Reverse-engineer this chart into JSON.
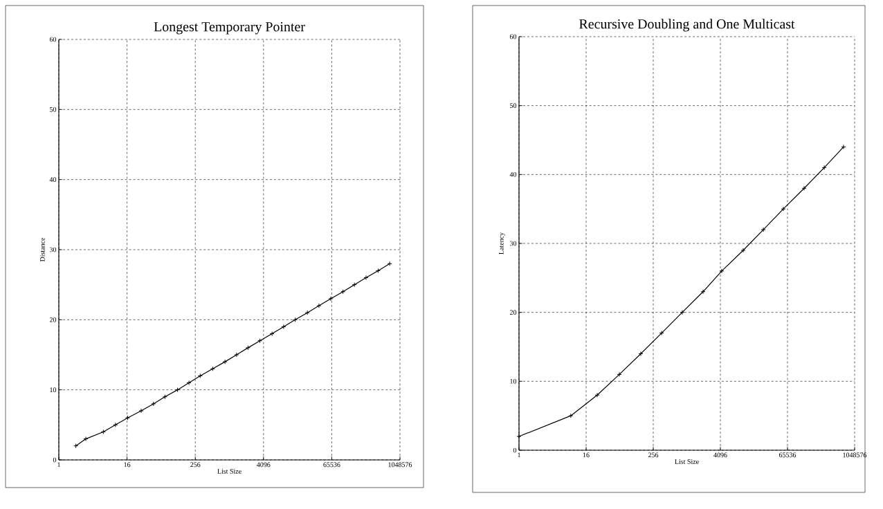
{
  "chart_data": [
    {
      "type": "line",
      "title": "Longest Temporary Pointer",
      "xlabel": "List Size",
      "ylabel": "Distance",
      "color": "#000000",
      "marker": "cross",
      "line_style": "solid",
      "grid": true,
      "log": "x",
      "x": [
        2,
        3,
        6.1,
        10,
        16.4,
        28.4,
        46.8,
        74.5,
        124.5,
        198,
        313,
        519,
        855,
        1370,
        2180,
        3540,
        5790,
        9280,
        14860,
        24320,
        38950,
        62820,
        103500,
        164700,
        264000,
        431600,
        691000
      ],
      "values": [
        2,
        3,
        4,
        5,
        6,
        7,
        8,
        9,
        10,
        11,
        12,
        13,
        14,
        15,
        16,
        17,
        18,
        19,
        20,
        21,
        22,
        23,
        24,
        25,
        26,
        27,
        28
      ],
      "xlim": [
        1,
        1048576
      ],
      "ylim": [
        0,
        60
      ],
      "xticks": [
        1,
        16,
        256,
        4096,
        65536,
        1048576
      ],
      "yticks": [
        0,
        10,
        20,
        30,
        40,
        50,
        60
      ]
    },
    {
      "type": "line",
      "title": "Recursive Doubling and One Multicast",
      "xlabel": "List Size",
      "ylabel": "Latency",
      "color": "#000000",
      "marker": "cross",
      "line_style": "solid",
      "grid": true,
      "log": "x",
      "x": [
        1,
        8.5,
        25.3,
        63.1,
        153,
        362,
        849,
        2006,
        4330,
        10510,
        24150,
        55100,
        130200,
        299000,
        664000
      ],
      "values": [
        2,
        5,
        8,
        11,
        14,
        17,
        20,
        23,
        26,
        29,
        32,
        35,
        38,
        41,
        44
      ],
      "xlim": [
        1,
        1048576
      ],
      "ylim": [
        0,
        60
      ],
      "xticks": [
        1,
        16,
        256,
        4096,
        65536,
        1048576
      ],
      "yticks": [
        0,
        10,
        20,
        30,
        40,
        50,
        60
      ]
    }
  ]
}
